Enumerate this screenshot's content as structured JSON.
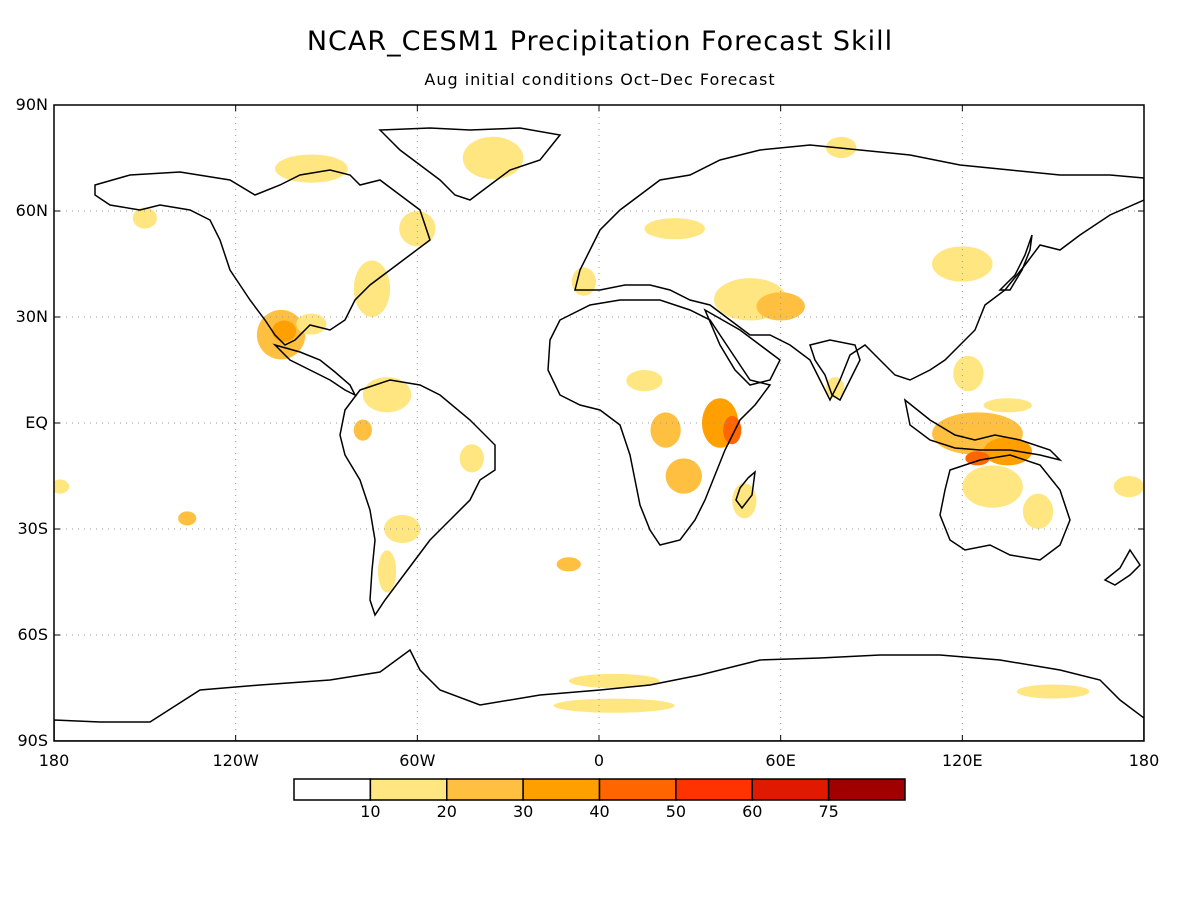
{
  "title": "NCAR_CESM1 Precipitation Forecast Skill",
  "subtitle": "Aug initial conditions   Oct–Dec Forecast",
  "axes": {
    "lat_ticks": [
      {
        "label": "90N",
        "lat": 90
      },
      {
        "label": "60N",
        "lat": 60
      },
      {
        "label": "30N",
        "lat": 30
      },
      {
        "label": "EQ",
        "lat": 0
      },
      {
        "label": "30S",
        "lat": -30
      },
      {
        "label": "60S",
        "lat": -60
      },
      {
        "label": "90S",
        "lat": -90
      }
    ],
    "lon_ticks": [
      {
        "label": "180",
        "lon": -180
      },
      {
        "label": "120W",
        "lon": -120
      },
      {
        "label": "60W",
        "lon": -60
      },
      {
        "label": "0",
        "lon": 0
      },
      {
        "label": "60E",
        "lon": 60
      },
      {
        "label": "120E",
        "lon": 120
      },
      {
        "label": "180",
        "lon": 180
      }
    ]
  },
  "colorbar": {
    "colors": [
      "#ffffff",
      "#ffe680",
      "#ffbf40",
      "#ffa000",
      "#ff6600",
      "#ff3300",
      "#e01a00",
      "#a00000"
    ],
    "labels": [
      "10",
      "20",
      "30",
      "40",
      "50",
      "60",
      "75"
    ]
  },
  "skill_regions": [
    {
      "name": "greenland",
      "lon": -35,
      "lat": 75,
      "rx": 10,
      "ry": 6,
      "level": 1
    },
    {
      "name": "canada-arctic",
      "lon": -95,
      "lat": 72,
      "rx": 12,
      "ry": 4,
      "level": 1
    },
    {
      "name": "labrador",
      "lon": -60,
      "lat": 55,
      "rx": 6,
      "ry": 5,
      "level": 1
    },
    {
      "name": "us-east",
      "lon": -75,
      "lat": 38,
      "rx": 6,
      "ry": 8,
      "level": 1
    },
    {
      "name": "mexico",
      "lon": -105,
      "lat": 25,
      "rx": 8,
      "ry": 7,
      "level": 2
    },
    {
      "name": "mexico-core",
      "lon": -104,
      "lat": 26,
      "rx": 4,
      "ry": 3,
      "level": 3
    },
    {
      "name": "gulf",
      "lon": -95,
      "lat": 28,
      "rx": 5,
      "ry": 3,
      "level": 1
    },
    {
      "name": "caribbean-sa",
      "lon": -70,
      "lat": 8,
      "rx": 8,
      "ry": 5,
      "level": 1
    },
    {
      "name": "peru",
      "lon": -78,
      "lat": -2,
      "rx": 3,
      "ry": 3,
      "level": 2
    },
    {
      "name": "ne-brazil",
      "lon": -42,
      "lat": -10,
      "rx": 4,
      "ry": 4,
      "level": 1
    },
    {
      "name": "argentina",
      "lon": -65,
      "lat": -30,
      "rx": 6,
      "ry": 4,
      "level": 1
    },
    {
      "name": "patagonia",
      "lon": -70,
      "lat": -42,
      "rx": 3,
      "ry": 6,
      "level": 1
    },
    {
      "name": "pacific-sq",
      "lon": -136,
      "lat": -27,
      "rx": 3,
      "ry": 2,
      "level": 2
    },
    {
      "name": "pacific-w",
      "lon": -178,
      "lat": -18,
      "rx": 3,
      "ry": 2,
      "level": 1
    },
    {
      "name": "sahel",
      "lon": 15,
      "lat": 12,
      "rx": 6,
      "ry": 3,
      "level": 1
    },
    {
      "name": "congo",
      "lon": 22,
      "lat": -2,
      "rx": 5,
      "ry": 5,
      "level": 2
    },
    {
      "name": "east-africa",
      "lon": 40,
      "lat": 0,
      "rx": 6,
      "ry": 7,
      "level": 3
    },
    {
      "name": "kenya-core",
      "lon": 44,
      "lat": -2,
      "rx": 3,
      "ry": 4,
      "level": 4
    },
    {
      "name": "s-africa",
      "lon": 28,
      "lat": -15,
      "rx": 6,
      "ry": 5,
      "level": 2
    },
    {
      "name": "madagascar",
      "lon": 48,
      "lat": -22,
      "rx": 4,
      "ry": 5,
      "level": 1
    },
    {
      "name": "s-atlantic",
      "lon": -10,
      "lat": -40,
      "rx": 4,
      "ry": 2,
      "level": 2
    },
    {
      "name": "middle-east",
      "lon": 50,
      "lat": 35,
      "rx": 12,
      "ry": 6,
      "level": 1
    },
    {
      "name": "iran",
      "lon": 60,
      "lat": 33,
      "rx": 8,
      "ry": 4,
      "level": 2
    },
    {
      "name": "china-n",
      "lon": 120,
      "lat": 45,
      "rx": 10,
      "ry": 5,
      "level": 1
    },
    {
      "name": "indonesia",
      "lon": 125,
      "lat": -3,
      "rx": 15,
      "ry": 6,
      "level": 2
    },
    {
      "name": "png-core",
      "lon": 135,
      "lat": -8,
      "rx": 8,
      "ry": 4,
      "level": 3
    },
    {
      "name": "timor",
      "lon": 125,
      "lat": -10,
      "rx": 4,
      "ry": 2,
      "level": 4
    },
    {
      "name": "n-australia",
      "lon": 130,
      "lat": -18,
      "rx": 10,
      "ry": 6,
      "level": 1
    },
    {
      "name": "e-australia",
      "lon": 145,
      "lat": -25,
      "rx": 5,
      "ry": 5,
      "level": 1
    },
    {
      "name": "antarctic-1",
      "lon": 5,
      "lat": -73,
      "rx": 15,
      "ry": 2,
      "level": 1
    },
    {
      "name": "antarctic-2",
      "lon": 5,
      "lat": -80,
      "rx": 20,
      "ry": 2,
      "level": 1
    },
    {
      "name": "antarctic-3",
      "lon": 150,
      "lat": -76,
      "rx": 12,
      "ry": 2,
      "level": 1
    },
    {
      "name": "europe",
      "lon": -5,
      "lat": 40,
      "rx": 4,
      "ry": 4,
      "level": 1
    },
    {
      "name": "n-europe",
      "lon": 25,
      "lat": 55,
      "rx": 10,
      "ry": 3,
      "level": 1
    },
    {
      "name": "siberia",
      "lon": 80,
      "lat": 78,
      "rx": 5,
      "ry": 3,
      "level": 1
    },
    {
      "name": "alaska",
      "lon": -150,
      "lat": 58,
      "rx": 4,
      "ry": 3,
      "level": 1
    },
    {
      "name": "india",
      "lon": 78,
      "lat": 10,
      "rx": 3,
      "ry": 3,
      "level": 1
    },
    {
      "name": "philippines",
      "lon": 122,
      "lat": 14,
      "rx": 5,
      "ry": 5,
      "level": 1
    },
    {
      "name": "nw-pacific",
      "lon": 135,
      "lat": 5,
      "rx": 8,
      "ry": 2,
      "level": 1
    },
    {
      "name": "se-pacific-isl",
      "lon": 175,
      "lat": -18,
      "rx": 5,
      "ry": 3,
      "level": 1
    }
  ]
}
